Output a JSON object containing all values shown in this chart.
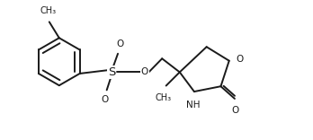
{
  "bg_color": "#ffffff",
  "line_color": "#1a1a1a",
  "line_width": 1.4,
  "font_size": 7.5,
  "xlim": [
    0,
    10
  ],
  "ylim": [
    0,
    4.5
  ]
}
